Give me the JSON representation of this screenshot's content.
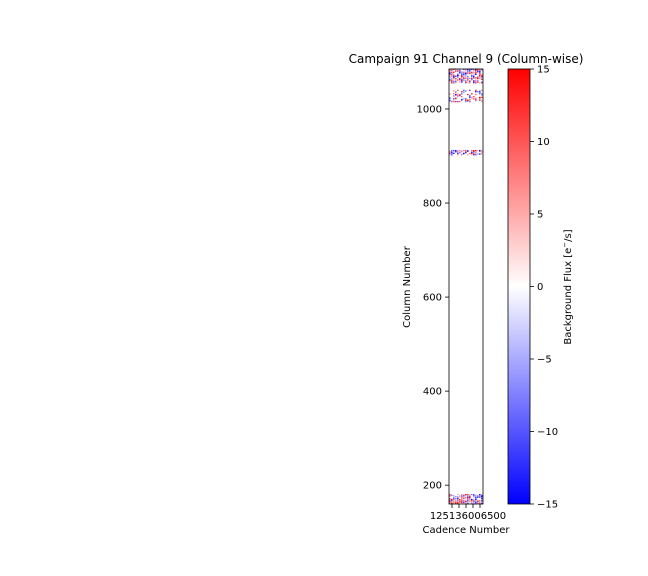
{
  "chart_data": {
    "type": "heatmap",
    "title": "Campaign 91 Channel 9 (Column-wise)",
    "xlabel": "Cadence Number",
    "ylabel": "Column Number",
    "x_tick_labels_overlapping": "125136006500",
    "y_ticks": [
      200,
      400,
      600,
      800,
      1000
    ],
    "ylim": [
      160,
      1085
    ],
    "colorbar": {
      "label": "Background Flux [e$^-$/s]",
      "colormap": "bwr",
      "vmin": -15,
      "vmax": 15,
      "ticks": [
        15,
        10,
        5,
        0,
        -5,
        -10,
        -15
      ]
    },
    "bands": [
      {
        "column_start": 160,
        "column_end": 180,
        "description": "dense mixed positive/negative flux"
      },
      {
        "column_start": 902,
        "column_end": 912,
        "description": "mixed flux, mostly negative/positive speckle"
      },
      {
        "column_start": 1015,
        "column_end": 1040,
        "description": "sparse mixed flux"
      },
      {
        "column_start": 1055,
        "column_end": 1085,
        "description": "dense mixed positive/negative flux"
      }
    ],
    "grid": false
  }
}
